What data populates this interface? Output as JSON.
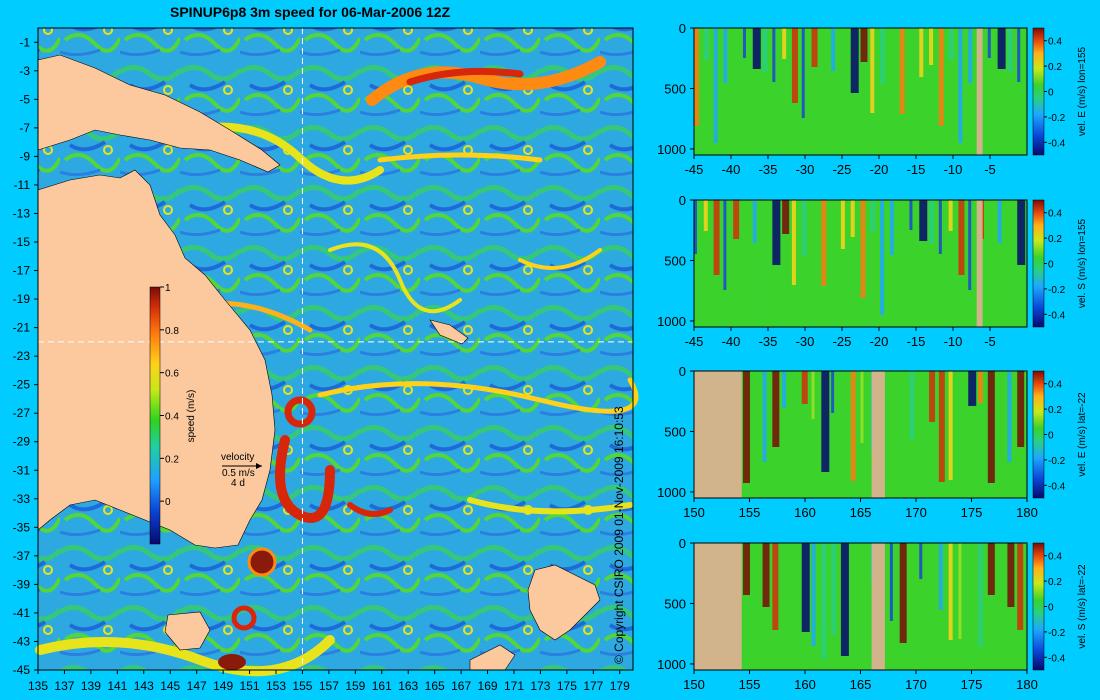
{
  "title": "SPINUP6p8 3m speed for 06-Mar-2006 12Z",
  "copyright": "© Copyright CSIRO 2009   01-Nov-2009 16:10:53",
  "map": {
    "type": "heatmap",
    "x_ticks": [
      135,
      137,
      139,
      141,
      143,
      145,
      147,
      149,
      151,
      153,
      155,
      157,
      159,
      161,
      163,
      165,
      167,
      169,
      171,
      173,
      175,
      177,
      179
    ],
    "y_ticks": [
      -1,
      -3,
      -5,
      -7,
      -9,
      -11,
      -13,
      -15,
      -17,
      -19,
      -21,
      -23,
      -25,
      -27,
      -29,
      -31,
      -33,
      -35,
      -37,
      -39,
      -41,
      -43,
      -45
    ],
    "xlim": [
      135,
      180
    ],
    "ylim": [
      -45,
      0
    ],
    "crosshair": {
      "lon": 155,
      "lat": -22
    },
    "colorbar": {
      "label": "speed (m/s)",
      "ticks": [
        "1",
        "0.8",
        "0.6",
        "0.4",
        "0.2",
        "0"
      ],
      "range": [
        -0.2,
        1
      ]
    },
    "velocity_key": {
      "title": "velocity",
      "speed": "0.5 m/s",
      "duration": "4 d"
    },
    "colors": {
      "land": "#fbc99d",
      "low": "#1f5fd6",
      "high": "#8a1a0a"
    }
  },
  "panels": [
    {
      "label": "vel. E (m/s) lon=155",
      "x_ticks": [
        "-45",
        "-40",
        "-35",
        "-30",
        "-25",
        "-20",
        "-15",
        "-10",
        "-5"
      ],
      "xlim": [
        -45,
        0
      ],
      "y_ticks": [
        "0",
        "500",
        "1000"
      ],
      "ylim": [
        0,
        1050
      ],
      "cbar_ticks": [
        "0.4",
        "0.2",
        "0",
        "-0.2",
        "-0.4"
      ],
      "land": [
        [
          -6.8,
          -6.0
        ]
      ]
    },
    {
      "label": "vel. S (m/s) lon=155",
      "x_ticks": [
        "-45",
        "-40",
        "-35",
        "-30",
        "-25",
        "-20",
        "-15",
        "-10",
        "-5"
      ],
      "xlim": [
        -45,
        0
      ],
      "y_ticks": [
        "0",
        "500",
        "1000"
      ],
      "ylim": [
        0,
        1050
      ],
      "cbar_ticks": [
        "0.4",
        "0.2",
        "0",
        "-0.2",
        "-0.4"
      ],
      "land": [
        [
          -6.8,
          -6.0
        ]
      ]
    },
    {
      "label": "vel. E (m/s) lat=-22",
      "x_ticks": [
        "150",
        "155",
        "160",
        "165",
        "170",
        "175",
        "180"
      ],
      "xlim": [
        150,
        180
      ],
      "y_ticks": [
        "0",
        "500",
        "1000"
      ],
      "ylim": [
        0,
        1050
      ],
      "cbar_ticks": [
        "0.4",
        "0.2",
        "0",
        "-0.2",
        "-0.4"
      ],
      "land": [
        [
          150,
          154.3
        ],
        [
          166.0,
          167.2
        ]
      ]
    },
    {
      "label": "vel. S (m/s) lat=-22",
      "x_ticks": [
        "150",
        "155",
        "160",
        "165",
        "170",
        "175",
        "180"
      ],
      "xlim": [
        150,
        180
      ],
      "y_ticks": [
        "0",
        "500",
        "1000"
      ],
      "ylim": [
        0,
        1050
      ],
      "cbar_ticks": [
        "0.4",
        "0.2",
        "0",
        "-0.2",
        "-0.4"
      ],
      "land": [
        [
          150,
          154.3
        ],
        [
          166.0,
          167.2
        ]
      ]
    }
  ]
}
